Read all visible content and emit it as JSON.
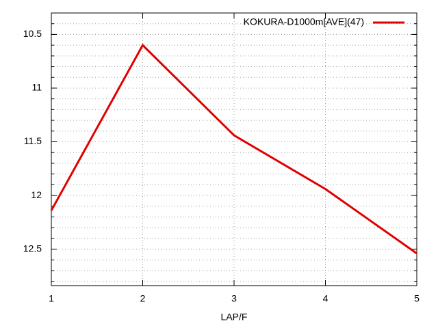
{
  "chart_data": {
    "type": "line",
    "xlabel": "LAP/F",
    "x": [
      1,
      2,
      3,
      4,
      5
    ],
    "series": [
      {
        "name": "KOKURA-D1000m[AVE](47)",
        "color": "#e00000",
        "values": [
          12.14,
          10.6,
          11.44,
          11.94,
          12.54
        ]
      }
    ],
    "xlim": [
      1,
      5
    ],
    "xticks": [
      1,
      2,
      3,
      4,
      5
    ],
    "ylim": [
      10.3,
      12.84
    ],
    "yticks": [
      10.5,
      11,
      11.5,
      12,
      12.5
    ],
    "y_reversed": true,
    "y_minor_divisions": 5,
    "grid": true,
    "legend": "top-right"
  }
}
